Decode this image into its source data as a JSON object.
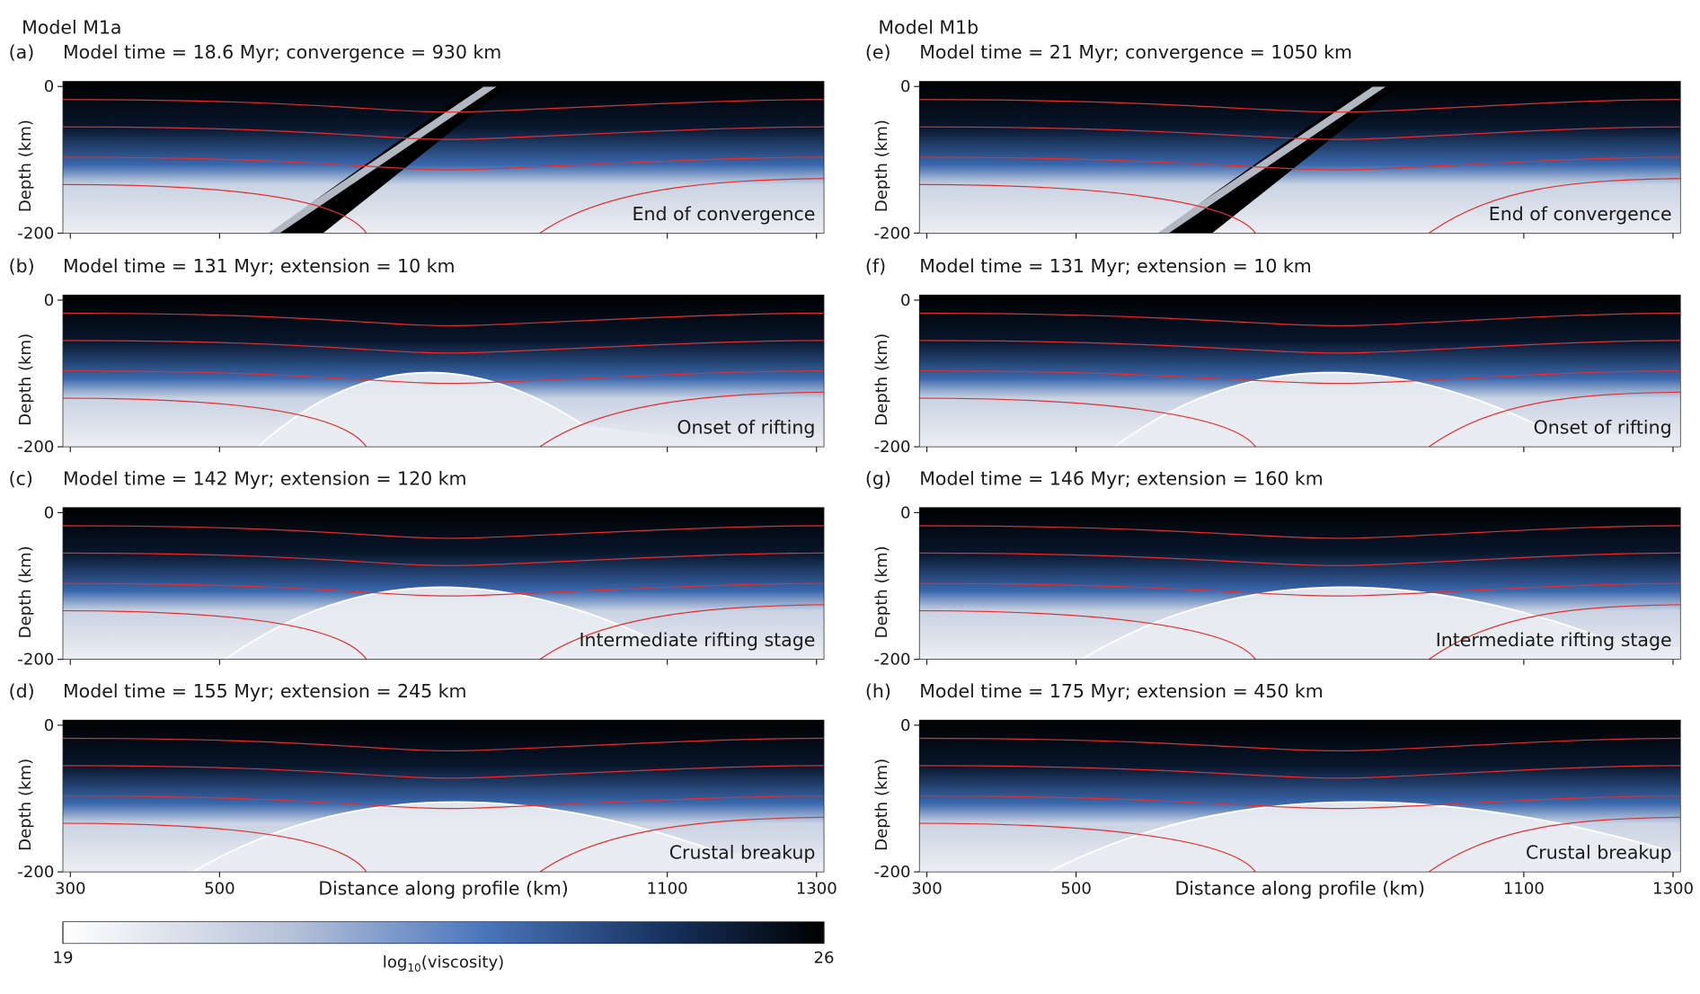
{
  "columns": [
    {
      "title": "Model M1a",
      "panels": [
        {
          "label": "(a)",
          "caption": "Model time = 18.6 Myr; convergence = 930 km",
          "stage": "End of convergence"
        },
        {
          "label": "(b)",
          "caption": "Model time = 131 Myr; extension = 10 km",
          "stage": "Onset of rifting"
        },
        {
          "label": "(c)",
          "caption": "Model time = 142 Myr; extension = 120 km",
          "stage": "Intermediate rifting stage"
        },
        {
          "label": "(d)",
          "caption": "Model time = 155 Myr; extension = 245 km",
          "stage": "Crustal breakup"
        }
      ]
    },
    {
      "title": "Model M1b",
      "panels": [
        {
          "label": "(e)",
          "caption": "Model time = 21 Myr; convergence = 1050 km",
          "stage": "End of convergence"
        },
        {
          "label": "(f)",
          "caption": "Model time = 131 Myr; extension = 10 km",
          "stage": "Onset of rifting"
        },
        {
          "label": "(g)",
          "caption": "Model time = 146 Myr; extension = 160 km",
          "stage": "Intermediate rifting stage"
        },
        {
          "label": "(h)",
          "caption": "Model time = 175 Myr; extension = 450 km",
          "stage": "Crustal breakup"
        }
      ]
    }
  ],
  "axes": {
    "ylabel": "Depth (km)",
    "xlabel": "Distance along profile (km)",
    "ylim": [
      -200,
      7
    ],
    "yticks": [
      0,
      -200
    ],
    "xlim": [
      290,
      1310
    ],
    "xticks": [
      300,
      500,
      1100,
      1300
    ]
  },
  "colorbar": {
    "label_base": "log",
    "label_sub": "10",
    "label_rest": "(viscosity)",
    "lim": [
      19,
      26
    ]
  }
}
